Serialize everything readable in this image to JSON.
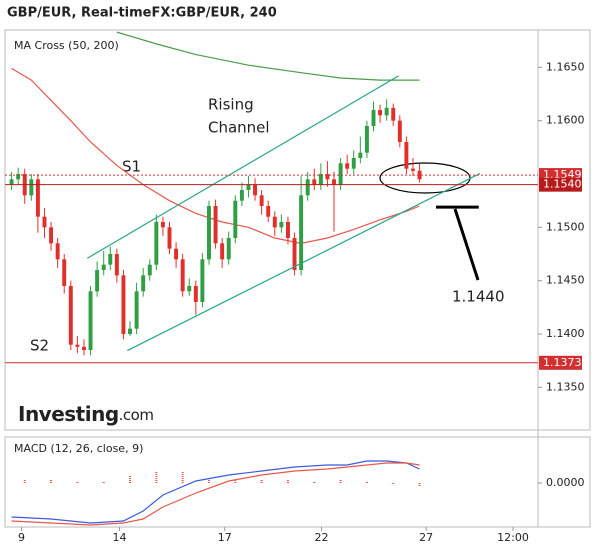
{
  "chart_data": [
    {
      "type": "candlestick",
      "title": "GBP/EUR, Real-timeFX:GBP/EUR, 240",
      "subtitle": "MA Cross (50, 200)",
      "x": [
        0,
        1,
        2,
        3,
        4,
        5,
        6,
        7,
        8,
        9,
        10,
        11,
        12,
        13,
        14,
        15,
        16,
        17,
        18,
        19,
        20,
        21,
        22,
        23,
        24,
        25,
        26,
        27,
        28,
        29,
        30,
        31,
        32,
        33,
        34,
        35,
        36,
        37,
        38,
        39,
        40,
        41,
        42,
        43,
        44,
        45,
        46,
        47,
        48,
        49,
        50,
        51,
        52,
        53,
        54,
        55,
        56,
        57,
        58,
        59,
        60,
        61,
        62
      ],
      "open": [
        1.154,
        1.1545,
        1.155,
        1.153,
        1.1545,
        1.151,
        1.15,
        1.1485,
        1.147,
        1.1445,
        1.139,
        1.1388,
        1.1385,
        1.144,
        1.146,
        1.1465,
        1.1475,
        1.1455,
        1.14,
        1.1405,
        1.144,
        1.1455,
        1.1465,
        1.1505,
        1.15,
        1.148,
        1.147,
        1.144,
        1.1445,
        1.143,
        1.147,
        1.152,
        1.1485,
        1.147,
        1.149,
        1.1525,
        1.1535,
        1.154,
        1.153,
        1.152,
        1.151,
        1.15,
        1.1505,
        1.149,
        1.146,
        1.153,
        1.1545,
        1.154,
        1.155,
        1.1545,
        1.154,
        1.156,
        1.1555,
        1.1565,
        1.157,
        1.1595,
        1.161,
        1.1605,
        1.1612,
        1.16,
        1.158,
        1.1555,
        1.1553
      ],
      "high": [
        1.1552,
        1.1556,
        1.1555,
        1.155,
        1.155,
        1.1518,
        1.1505,
        1.149,
        1.1475,
        1.145,
        1.1398,
        1.1395,
        1.1445,
        1.1468,
        1.1478,
        1.1482,
        1.148,
        1.146,
        1.1412,
        1.1448,
        1.1462,
        1.147,
        1.1512,
        1.151,
        1.1505,
        1.1486,
        1.1475,
        1.1452,
        1.145,
        1.1476,
        1.1525,
        1.1526,
        1.149,
        1.1496,
        1.153,
        1.1542,
        1.1548,
        1.1546,
        1.1535,
        1.1525,
        1.1515,
        1.1512,
        1.151,
        1.1495,
        1.1548,
        1.1552,
        1.1555,
        1.156,
        1.1562,
        1.1552,
        1.1565,
        1.1568,
        1.1572,
        1.1585,
        1.16,
        1.1618,
        1.1615,
        1.162,
        1.1616,
        1.1605,
        1.1585,
        1.1565,
        1.156
      ],
      "low": [
        1.1535,
        1.154,
        1.1522,
        1.1525,
        1.1495,
        1.149,
        1.1478,
        1.1462,
        1.1438,
        1.1385,
        1.1382,
        1.138,
        1.138,
        1.1435,
        1.1455,
        1.146,
        1.1448,
        1.1395,
        1.1398,
        1.14,
        1.1435,
        1.145,
        1.146,
        1.1492,
        1.1475,
        1.1462,
        1.1435,
        1.1436,
        1.1418,
        1.1425,
        1.1465,
        1.148,
        1.1462,
        1.1465,
        1.1485,
        1.152,
        1.1528,
        1.1525,
        1.1512,
        1.1505,
        1.1492,
        1.1495,
        1.1484,
        1.1455,
        1.1455,
        1.1525,
        1.1535,
        1.1535,
        1.1538,
        1.1496,
        1.1535,
        1.155,
        1.155,
        1.156,
        1.1565,
        1.159,
        1.1598,
        1.16,
        1.1595,
        1.1575,
        1.155,
        1.1548,
        1.1542
      ],
      "close": [
        1.1545,
        1.155,
        1.153,
        1.1545,
        1.151,
        1.15,
        1.1485,
        1.147,
        1.1445,
        1.139,
        1.1388,
        1.1385,
        1.144,
        1.146,
        1.1465,
        1.1475,
        1.1455,
        1.14,
        1.1405,
        1.144,
        1.1455,
        1.1465,
        1.1505,
        1.15,
        1.148,
        1.147,
        1.144,
        1.1445,
        1.143,
        1.147,
        1.152,
        1.1485,
        1.147,
        1.149,
        1.1525,
        1.1535,
        1.154,
        1.153,
        1.152,
        1.151,
        1.15,
        1.1505,
        1.149,
        1.146,
        1.153,
        1.1545,
        1.154,
        1.155,
        1.1545,
        1.154,
        1.156,
        1.1555,
        1.1565,
        1.157,
        1.1595,
        1.161,
        1.1605,
        1.1612,
        1.16,
        1.158,
        1.1555,
        1.1553,
        1.1545
      ],
      "up_color": "#2f9e44",
      "down_color": "#e0302b",
      "series": [
        {
          "color": "#e8574f",
          "x": [
            0,
            3,
            6,
            9,
            12,
            16,
            20,
            24,
            28,
            32,
            36,
            40,
            44,
            48,
            52,
            56,
            60,
            62
          ],
          "values": [
            1.1649,
            1.1638,
            1.1619,
            1.16,
            1.158,
            1.1558,
            1.154,
            1.1525,
            1.1513,
            1.1505,
            1.15,
            1.149,
            1.1485,
            1.149,
            1.1498,
            1.1507,
            1.1515,
            1.152
          ]
        },
        {
          "color": "#4c9a4c",
          "x": [
            16,
            22,
            28,
            36,
            44,
            50,
            56,
            62
          ],
          "values": [
            1.1683,
            1.1672,
            1.1662,
            1.1652,
            1.1645,
            1.164,
            1.1638,
            1.1638
          ]
        }
      ],
      "trendlines": [
        {
          "color": "#2aa58a",
          "x": [
            11.5,
            58.8
          ],
          "values": [
            1.1471,
            1.1642
          ]
        },
        {
          "color": "#2aa58a",
          "x": [
            17.6,
            71.2
          ],
          "values": [
            1.13845,
            1.15505
          ]
        },
        {
          "color": "#000000",
          "x": [
            64.5,
            71
          ],
          "values": [
            1.1519,
            1.1519
          ]
        }
      ],
      "levels": [
        {
          "value": 1.1549,
          "label": "1.1549",
          "color": "#d32f2f",
          "dotted": true
        },
        {
          "value": 1.154,
          "label": "1.1540",
          "color": "#b71c1c",
          "dotted": false
        },
        {
          "value": 1.1373,
          "label": "1.1373",
          "color": "#d32f2f",
          "dotted": false
        }
      ],
      "annotations": [
        "Rising",
        "Channel",
        "S1",
        "S2",
        "1.1440"
      ],
      "logo": [
        "Investing",
        ".com"
      ],
      "xlim": [
        -1,
        80
      ],
      "ylim": [
        1.131,
        1.1685
      ],
      "yticks": [
        {
          "value": 1.165,
          "label": "1.1650"
        },
        {
          "value": 1.16,
          "label": "1.1600"
        },
        {
          "value": 1.15,
          "label": "1.1500"
        },
        {
          "value": 1.145,
          "label": "1.1450"
        },
        {
          "value": 1.14,
          "label": "1.1400"
        },
        {
          "value": 1.135,
          "label": "1.1350"
        }
      ]
    },
    {
      "type": "line",
      "title": "MACD (12, 26, close, 9)",
      "series": [
        {
          "color": "#3b5bdb",
          "x": [
            0,
            6,
            12,
            17,
            20,
            23,
            28,
            33,
            38,
            43,
            48,
            51,
            54,
            57,
            60,
            62
          ],
          "values": [
            -0.0017,
            -0.0018,
            -0.002,
            -0.0019,
            -0.0014,
            -0.0006,
            0.0001,
            0.0004,
            0.0006,
            0.0008,
            0.0009,
            0.0009,
            0.0011,
            0.0011,
            0.001,
            0.0007
          ]
        },
        {
          "color": "#e8574f",
          "x": [
            0,
            6,
            12,
            17,
            20,
            23,
            28,
            33,
            38,
            43,
            48,
            51,
            54,
            57,
            60,
            62
          ],
          "values": [
            -0.0019,
            -0.002,
            -0.0021,
            -0.002,
            -0.0018,
            -0.0012,
            -0.0005,
            0.0001,
            0.0004,
            0.0006,
            0.0007,
            0.0008,
            0.0009,
            0.001,
            0.001,
            0.0009
          ]
        }
      ],
      "histogram": {
        "color": "#e8574f",
        "x": [
          2,
          6,
          10,
          14,
          18,
          22,
          26,
          30,
          34,
          38,
          42,
          46,
          50,
          54,
          58,
          62
        ],
        "values": [
          0.0002,
          0.0002,
          0.0001,
          0.0001,
          0.0004,
          0.0006,
          0.0006,
          0.0003,
          0.0002,
          0.0002,
          0.0002,
          0.0001,
          0.0002,
          0.0001,
          -0.0001,
          -0.0002
        ]
      },
      "xlim": [
        -1,
        80
      ],
      "ylim": [
        -0.0022,
        0.0023
      ],
      "yticks": [
        {
          "value": 0,
          "label": "0.0000"
        }
      ],
      "xticks": [
        {
          "value": 1.5,
          "label": "9"
        },
        {
          "value": 16.4,
          "label": "14"
        },
        {
          "value": 32.4,
          "label": "17"
        },
        {
          "value": 47.1,
          "label": "22"
        },
        {
          "value": 63,
          "label": "27"
        },
        {
          "value": 76.2,
          "label": "12:00"
        }
      ]
    }
  ]
}
